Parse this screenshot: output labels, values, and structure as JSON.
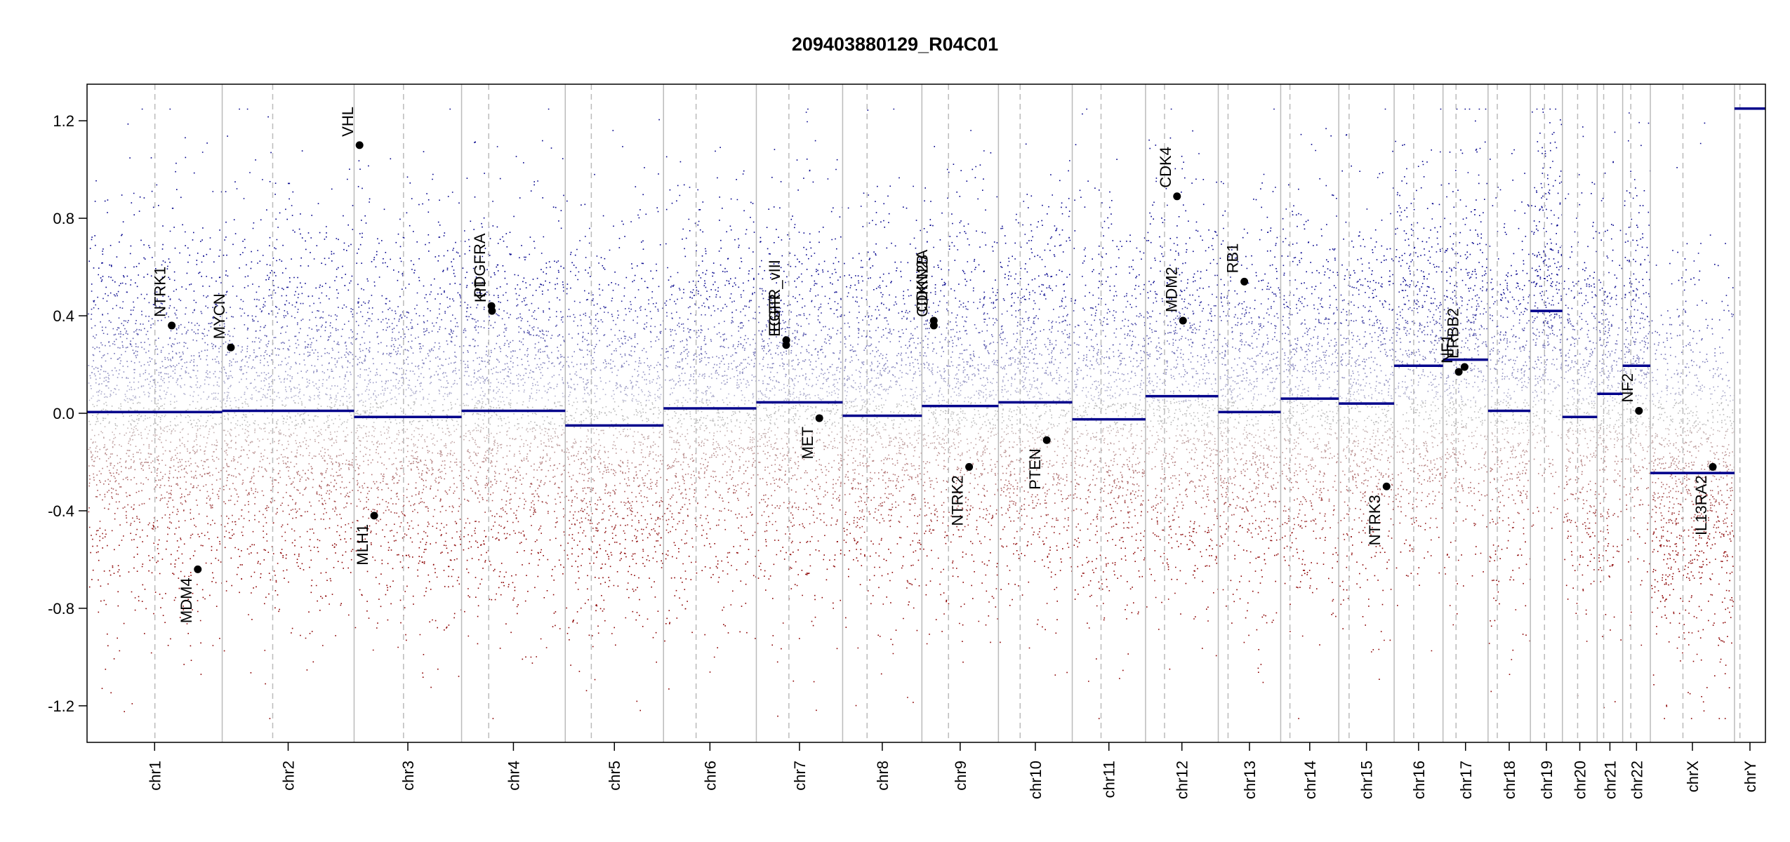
{
  "chart_data": {
    "type": "scatter",
    "title": "209403880129_R04C01",
    "xlabel": "",
    "ylabel": "",
    "ylim": [
      -1.35,
      1.35
    ],
    "y_ticks": [
      "1.2",
      "0.8",
      "0.4",
      "0.0",
      "-0.4",
      "-0.8",
      "-1.2"
    ],
    "grid": false,
    "colors": {
      "gain": "#00008b",
      "loss": "#8b0000",
      "neutral": "#bbbbbb",
      "segment": "#00008b",
      "boundary": "#bbbbbb",
      "marker": "#000000"
    },
    "chromosomes": [
      {
        "name": "chr1",
        "length": 249,
        "centromere": 125
      },
      {
        "name": "chr2",
        "length": 243,
        "centromere": 93
      },
      {
        "name": "chr3",
        "length": 198,
        "centromere": 91
      },
      {
        "name": "chr4",
        "length": 191,
        "centromere": 50
      },
      {
        "name": "chr5",
        "length": 181,
        "centromere": 48
      },
      {
        "name": "chr6",
        "length": 171,
        "centromere": 60
      },
      {
        "name": "chr7",
        "length": 159,
        "centromere": 60
      },
      {
        "name": "chr8",
        "length": 146,
        "centromere": 45
      },
      {
        "name": "chr9",
        "length": 141,
        "centromere": 49
      },
      {
        "name": "chr10",
        "length": 136,
        "centromere": 40
      },
      {
        "name": "chr11",
        "length": 135,
        "centromere": 53
      },
      {
        "name": "chr12",
        "length": 134,
        "centromere": 35
      },
      {
        "name": "chr13",
        "length": 115,
        "centromere": 18
      },
      {
        "name": "chr14",
        "length": 107,
        "centromere": 17
      },
      {
        "name": "chr15",
        "length": 102,
        "centromere": 19
      },
      {
        "name": "chr16",
        "length": 90,
        "centromere": 36
      },
      {
        "name": "chr17",
        "length": 83,
        "centromere": 24
      },
      {
        "name": "chr18",
        "length": 78,
        "centromere": 17
      },
      {
        "name": "chr19",
        "length": 59,
        "centromere": 26
      },
      {
        "name": "chr20",
        "length": 64,
        "centromere": 28
      },
      {
        "name": "chr21",
        "length": 47,
        "centromere": 12
      },
      {
        "name": "chr22",
        "length": 51,
        "centromere": 15
      },
      {
        "name": "chrX",
        "length": 155,
        "centromere": 60
      },
      {
        "name": "chrY",
        "length": 57,
        "centromere": 10
      }
    ],
    "segments": [
      {
        "chr": "chr1",
        "value": 0.005
      },
      {
        "chr": "chr2",
        "value": 0.01
      },
      {
        "chr": "chr3",
        "value": -0.015
      },
      {
        "chr": "chr4",
        "value": 0.01
      },
      {
        "chr": "chr5",
        "value": -0.05
      },
      {
        "chr": "chr6",
        "value": 0.02
      },
      {
        "chr": "chr7",
        "value": 0.045
      },
      {
        "chr": "chr8",
        "value": -0.01
      },
      {
        "chr": "chr9",
        "value": 0.03
      },
      {
        "chr": "chr10",
        "value": 0.045
      },
      {
        "chr": "chr11",
        "value": -0.025
      },
      {
        "chr": "chr12",
        "value": 0.07
      },
      {
        "chr": "chr13",
        "value": 0.005
      },
      {
        "chr": "chr14",
        "value": 0.06
      },
      {
        "chr": "chr15",
        "value": 0.04
      },
      {
        "chr": "chr16",
        "value": 0.195
      },
      {
        "chr": "chr17",
        "value": 0.22
      },
      {
        "chr": "chr18",
        "value": 0.01
      },
      {
        "chr": "chr19",
        "value": 0.42
      },
      {
        "chr": "chr20",
        "value": -0.015
      },
      {
        "chr": "chr21",
        "value": 0.08
      },
      {
        "chr": "chr22",
        "value": 0.195
      },
      {
        "chr": "chrX",
        "value": -0.245
      },
      {
        "chr": "chrY",
        "value": 1.25
      }
    ],
    "genes": [
      {
        "name": "NTRK1",
        "chr": "chr1",
        "pos": 156,
        "value": 0.36
      },
      {
        "name": "MDM4",
        "chr": "chr1",
        "pos": 204,
        "value": -0.64
      },
      {
        "name": "MYCN",
        "chr": "chr2",
        "pos": 16,
        "value": 0.27
      },
      {
        "name": "VHL",
        "chr": "chr3",
        "pos": 10,
        "value": 1.1
      },
      {
        "name": "MLH1",
        "chr": "chr3",
        "pos": 37,
        "value": -0.42
      },
      {
        "name": "PDGFRA",
        "chr": "chr4",
        "pos": 55,
        "value": 0.44
      },
      {
        "name": "KIT",
        "chr": "chr4",
        "pos": 56,
        "value": 0.42
      },
      {
        "name": "EGFR",
        "chr": "chr7",
        "pos": 55,
        "value": 0.28
      },
      {
        "name": "EGFR_vIII",
        "chr": "chr7",
        "pos": 55.2,
        "value": 0.3
      },
      {
        "name": "MET",
        "chr": "chr7",
        "pos": 116,
        "value": -0.02
      },
      {
        "name": "CDKN2A",
        "chr": "chr9",
        "pos": 21.9,
        "value": 0.38
      },
      {
        "name": "CDKN2B",
        "chr": "chr9",
        "pos": 22.0,
        "value": 0.36
      },
      {
        "name": "NTRK2",
        "chr": "chr9",
        "pos": 87,
        "value": -0.22
      },
      {
        "name": "PTEN",
        "chr": "chr10",
        "pos": 89,
        "value": -0.11
      },
      {
        "name": "CDK4",
        "chr": "chr12",
        "pos": 58,
        "value": 0.89
      },
      {
        "name": "MDM2",
        "chr": "chr12",
        "pos": 69,
        "value": 0.38
      },
      {
        "name": "RB1",
        "chr": "chr13",
        "pos": 48,
        "value": 0.54
      },
      {
        "name": "NTRK3",
        "chr": "chr15",
        "pos": 88,
        "value": -0.3
      },
      {
        "name": "NF1",
        "chr": "chr17",
        "pos": 29,
        "value": 0.17
      },
      {
        "name": "ERBB2",
        "chr": "chr17",
        "pos": 39.7,
        "value": 0.19
      },
      {
        "name": "NF2",
        "chr": "chr22",
        "pos": 30,
        "value": 0.01
      },
      {
        "name": "IL13RA2",
        "chr": "chrX",
        "pos": 115,
        "value": -0.22
      }
    ]
  }
}
